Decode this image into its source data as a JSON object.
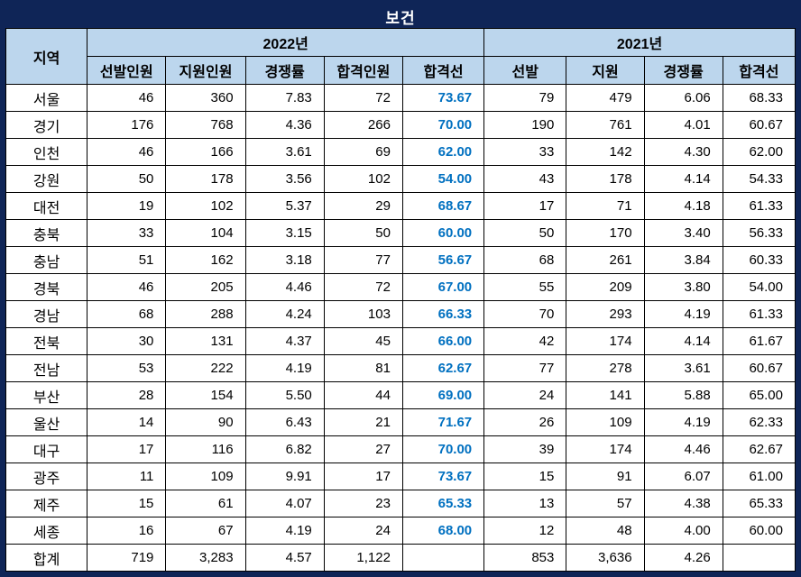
{
  "title": "보건",
  "colors": {
    "frame_navy": "#0F2557",
    "header_blue": "#BCD6ED",
    "passline_blue": "#0070C0",
    "grid_black": "#000000"
  },
  "chart_data": {
    "type": "table",
    "title": "보건",
    "region_header": "지역",
    "column_groups": [
      {
        "label": "2022년",
        "columns": [
          "선발인원",
          "지원인원",
          "경쟁률",
          "합격인원",
          "합격선"
        ]
      },
      {
        "label": "2021년",
        "columns": [
          "선발",
          "지원",
          "경쟁률",
          "합격선"
        ]
      }
    ],
    "rows": [
      {
        "region": "서울",
        "y2022": [
          "46",
          "360",
          "7.83",
          "72",
          "73.67"
        ],
        "y2021": [
          "79",
          "479",
          "6.06",
          "68.33"
        ]
      },
      {
        "region": "경기",
        "y2022": [
          "176",
          "768",
          "4.36",
          "266",
          "70.00"
        ],
        "y2021": [
          "190",
          "761",
          "4.01",
          "60.67"
        ]
      },
      {
        "region": "인천",
        "y2022": [
          "46",
          "166",
          "3.61",
          "69",
          "62.00"
        ],
        "y2021": [
          "33",
          "142",
          "4.30",
          "62.00"
        ]
      },
      {
        "region": "강원",
        "y2022": [
          "50",
          "178",
          "3.56",
          "102",
          "54.00"
        ],
        "y2021": [
          "43",
          "178",
          "4.14",
          "54.33"
        ]
      },
      {
        "region": "대전",
        "y2022": [
          "19",
          "102",
          "5.37",
          "29",
          "68.67"
        ],
        "y2021": [
          "17",
          "71",
          "4.18",
          "61.33"
        ]
      },
      {
        "region": "충북",
        "y2022": [
          "33",
          "104",
          "3.15",
          "50",
          "60.00"
        ],
        "y2021": [
          "50",
          "170",
          "3.40",
          "56.33"
        ]
      },
      {
        "region": "충남",
        "y2022": [
          "51",
          "162",
          "3.18",
          "77",
          "56.67"
        ],
        "y2021": [
          "68",
          "261",
          "3.84",
          "60.33"
        ]
      },
      {
        "region": "경북",
        "y2022": [
          "46",
          "205",
          "4.46",
          "72",
          "67.00"
        ],
        "y2021": [
          "55",
          "209",
          "3.80",
          "54.00"
        ]
      },
      {
        "region": "경남",
        "y2022": [
          "68",
          "288",
          "4.24",
          "103",
          "66.33"
        ],
        "y2021": [
          "70",
          "293",
          "4.19",
          "61.33"
        ]
      },
      {
        "region": "전북",
        "y2022": [
          "30",
          "131",
          "4.37",
          "45",
          "66.00"
        ],
        "y2021": [
          "42",
          "174",
          "4.14",
          "61.67"
        ]
      },
      {
        "region": "전남",
        "y2022": [
          "53",
          "222",
          "4.19",
          "81",
          "62.67"
        ],
        "y2021": [
          "77",
          "278",
          "3.61",
          "60.67"
        ]
      },
      {
        "region": "부산",
        "y2022": [
          "28",
          "154",
          "5.50",
          "44",
          "69.00"
        ],
        "y2021": [
          "24",
          "141",
          "5.88",
          "65.00"
        ]
      },
      {
        "region": "울산",
        "y2022": [
          "14",
          "90",
          "6.43",
          "21",
          "71.67"
        ],
        "y2021": [
          "26",
          "109",
          "4.19",
          "62.33"
        ]
      },
      {
        "region": "대구",
        "y2022": [
          "17",
          "116",
          "6.82",
          "27",
          "70.00"
        ],
        "y2021": [
          "39",
          "174",
          "4.46",
          "62.67"
        ]
      },
      {
        "region": "광주",
        "y2022": [
          "11",
          "109",
          "9.91",
          "17",
          "73.67"
        ],
        "y2021": [
          "15",
          "91",
          "6.07",
          "61.00"
        ]
      },
      {
        "region": "제주",
        "y2022": [
          "15",
          "61",
          "4.07",
          "23",
          "65.33"
        ],
        "y2021": [
          "13",
          "57",
          "4.38",
          "65.33"
        ]
      },
      {
        "region": "세종",
        "y2022": [
          "16",
          "67",
          "4.19",
          "24",
          "68.00"
        ],
        "y2021": [
          "12",
          "48",
          "4.00",
          "60.00"
        ]
      }
    ],
    "total": {
      "region": "합계",
      "y2022": [
        "719",
        "3,283",
        "4.57",
        "1,122",
        ""
      ],
      "y2021": [
        "853",
        "3,636",
        "4.26",
        ""
      ]
    }
  }
}
